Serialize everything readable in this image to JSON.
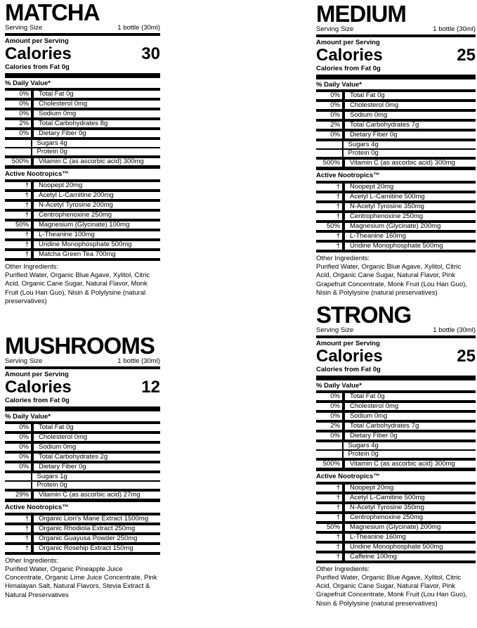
{
  "page": {
    "background": "#ffffff",
    "text_color": "#000000"
  },
  "labels": [
    {
      "id": "matcha",
      "title": "MATCHA",
      "serving_size_label": "Serving Size",
      "serving_size_value": "1 bottle (30ml)",
      "amount_per_serving": "Amount per Serving",
      "calories_label": "Calories",
      "calories_value": "30",
      "calories_from_fat": "Calories from Fat 0g",
      "daily_value_header": "% Daily Value*",
      "nutrition_rows": [
        {
          "pct": "0%",
          "label": "Total Fat 0g"
        },
        {
          "pct": "0%",
          "label": "Cholesterol 0mg"
        },
        {
          "pct": "0%",
          "label": "Sodium 0mg"
        },
        {
          "pct": "2%",
          "label": "Total Carbohydrates 8g"
        },
        {
          "pct": "0%",
          "label": "Dietary Fiber 0g"
        },
        {
          "pct": "",
          "label": "Sugars 4g"
        },
        {
          "pct": "",
          "label": "Protein 0g"
        },
        {
          "pct": "500%",
          "label": "Vitamin C (as ascorbic acid) 300mg"
        }
      ],
      "nootropics_header": "Active Nootropics™",
      "nootropic_rows": [
        {
          "pct": "†",
          "label": "Noopept 20mg"
        },
        {
          "pct": "†",
          "label": "Acetyl L-Carnitine 200mg"
        },
        {
          "pct": "†",
          "label": "N-Acetyl Tyrosine 200mg"
        },
        {
          "pct": "†",
          "label": "Centrophenoxine 250mg"
        },
        {
          "pct": "50%",
          "label": "Magnesium (Glycinate) 100mg"
        },
        {
          "pct": "†",
          "label": "L-Theanine 100mg"
        },
        {
          "pct": "†",
          "label": "Uridine Monophosphate 500mg"
        },
        {
          "pct": "†",
          "label": "Matcha Green Tea 700mg"
        }
      ],
      "other_ingredients_header": "Other Ingredients:",
      "other_ingredients": "Purified Water, Organic Blue Agave, Xylitol, Citric Acid, Organic Cane Sugar, Natural Flavor, Monk Fruit (Lou Han Guo), Nisin & Polylysine (natural preservatives)"
    },
    {
      "id": "medium",
      "title": "MEDIUM",
      "serving_size_label": "Serving Size",
      "serving_size_value": "1 bottle (30ml)",
      "amount_per_serving": "Amount per Serving",
      "calories_label": "Calories",
      "calories_value": "25",
      "calories_from_fat": "Calories from Fat 0g",
      "daily_value_header": "% Daily Value*",
      "nutrition_rows": [
        {
          "pct": "0%",
          "label": "Total Fat 0g"
        },
        {
          "pct": "0%",
          "label": "Cholesterol 0mg"
        },
        {
          "pct": "0%",
          "label": "Sodium 0mg"
        },
        {
          "pct": "2%",
          "label": "Total Carbohydrates 7g"
        },
        {
          "pct": "0%",
          "label": "Dietary Fiber 0g"
        },
        {
          "pct": "",
          "label": "Sugars 4g"
        },
        {
          "pct": "",
          "label": "Protein 0g"
        },
        {
          "pct": "500%",
          "label": "Vitamin C (as ascorbic acid) 300mg"
        }
      ],
      "nootropics_header": "Active Nootropics™",
      "nootropic_rows": [
        {
          "pct": "†",
          "label": "Noopept 20mg"
        },
        {
          "pct": "†",
          "label": "Acetyl L-Carnitine 500mg"
        },
        {
          "pct": "†",
          "label": "N-Acetyl Tyrosine 350mg"
        },
        {
          "pct": "†",
          "label": "Centrophenoxine 250mg"
        },
        {
          "pct": "50%",
          "label": "Magnesium (Glycinate) 200mg"
        },
        {
          "pct": "†",
          "label": "L-Theanine 160mg"
        },
        {
          "pct": "†",
          "label": "Uridine Monophosphate 500mg"
        }
      ],
      "other_ingredients_header": "Other Ingredients:",
      "other_ingredients": "Purified Water, Organic Blue Agave, Xylitol, Citric Acid, Organic Cane Sugar, Natural Flavor, Pink Grapefruit Concentrate, Monk Fruit (Lou Han Guo), Nisin & Polylysine (natural preservatives)"
    },
    {
      "id": "mushrooms",
      "title": "MUSHROOMS",
      "serving_size_label": "Serving Size",
      "serving_size_value": "1 bottle (30ml)",
      "amount_per_serving": "Amount per Serving",
      "calories_label": "Calories",
      "calories_value": "12",
      "calories_from_fat": "Calories from Fat 0g",
      "daily_value_header": "% Daily Value*",
      "nutrition_rows": [
        {
          "pct": "0%",
          "label": "Total Fat 0g"
        },
        {
          "pct": "0%",
          "label": "Cholesterol 0mg"
        },
        {
          "pct": "0%",
          "label": "Sodium 0mg"
        },
        {
          "pct": "0%",
          "label": "Total Carbohydrates 2g"
        },
        {
          "pct": "0%",
          "label": "Dietary Fiber 0g"
        },
        {
          "pct": "",
          "label": "Sugars 1g"
        },
        {
          "pct": "",
          "label": "Protein 0g"
        },
        {
          "pct": "29%",
          "label": "Vitamin C (as ascorbic acid) 27mg"
        }
      ],
      "nootropics_header": "Active Nootropics™",
      "nootropic_rows": [
        {
          "pct": "†",
          "label": "Organic Lion's Mane Extract 1500mg"
        },
        {
          "pct": "†",
          "label": "Organic Rhodiola Extract 250mg"
        },
        {
          "pct": "†",
          "label": "Organic Guayusa Powder 250mg"
        },
        {
          "pct": "†",
          "label": "Organic Rosehip Extract 150mg"
        }
      ],
      "other_ingredients_header": "Other Ingredients:",
      "other_ingredients": "Purified Water, Organic Pineapple Juice Concentrate, Organic Lime Juice Concentrate, Pink Himalayan Salt, Natural Flavors, Stevia Extract & Natural Preservatives"
    },
    {
      "id": "strong",
      "title": "STRONG",
      "serving_size_label": "Serving Size",
      "serving_size_value": "1 bottle (30ml)",
      "amount_per_serving": "Amount per Serving",
      "calories_label": "Calories",
      "calories_value": "25",
      "calories_from_fat": "Calories from Fat 0g",
      "daily_value_header": "% Daily Value*",
      "nutrition_rows": [
        {
          "pct": "0%",
          "label": "Total Fat 0g"
        },
        {
          "pct": "0%",
          "label": "Cholesterol 0mg"
        },
        {
          "pct": "0%",
          "label": "Sodium 0mg"
        },
        {
          "pct": "2%",
          "label": "Total Carbohydrates 7g"
        },
        {
          "pct": "0%",
          "label": "Dietary Fiber 0g"
        },
        {
          "pct": "",
          "label": "Sugars 4g"
        },
        {
          "pct": "",
          "label": "Protein 0g"
        },
        {
          "pct": "500%",
          "label": "Vitamin C (as ascorbic acid) 300mg"
        }
      ],
      "nootropics_header": "Active Nootropics™",
      "nootropic_rows": [
        {
          "pct": "†",
          "label": "Noopept 20mg"
        },
        {
          "pct": "†",
          "label": "Acetyl L-Carnitine 500mg"
        },
        {
          "pct": "†",
          "label": "N-Acetyl Tyrosine 350mg"
        },
        {
          "pct": "†",
          "label": "Centrophenoxine 250mg"
        },
        {
          "pct": "50%",
          "label": "Magnesium (Glycinate) 200mg"
        },
        {
          "pct": "†",
          "label": "L-Theanine 160mg"
        },
        {
          "pct": "†",
          "label": "Uridine Monophosphate 500mg"
        },
        {
          "pct": "†",
          "label": "Caffeine 100mg"
        }
      ],
      "other_ingredients_header": "Other Ingredients:",
      "other_ingredients": "Purified Water, Organic Blue Agave, Xylitol, Citric Acid, Organic Cane Sugar, Natural Flavor, Pink Grapefruit Concentrate, Monk Fruit (Lou Han Guo), Nisin & Polylysine (natural preservatives)"
    }
  ]
}
